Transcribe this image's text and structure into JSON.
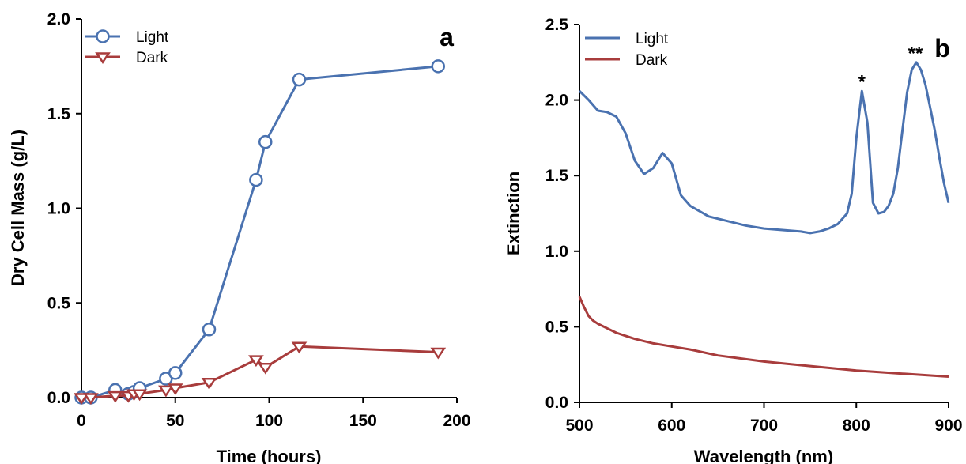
{
  "chart_data": [
    {
      "type": "line",
      "panel_label": "a",
      "xlabel": "Time (hours)",
      "ylabel": "Dry Cell Mass (g/L)",
      "xlim": [
        0,
        200
      ],
      "ylim": [
        0,
        2.0
      ],
      "xticks": [
        0,
        50,
        100,
        150,
        200
      ],
      "yticks": [
        0.0,
        0.5,
        1.0,
        1.5,
        2.0
      ],
      "xtick_labels": [
        "0",
        "50",
        "100",
        "150",
        "200"
      ],
      "ytick_labels": [
        "0.0",
        "0.5",
        "1.0",
        "1.5",
        "2.0"
      ],
      "grid": false,
      "legend_position": "top-left",
      "series": [
        {
          "name": "Light",
          "color": "#4a72b0",
          "marker": "circle",
          "x": [
            0,
            5,
            18,
            25,
            28,
            31,
            45,
            50,
            68,
            93,
            98,
            116,
            190
          ],
          "y": [
            0.0,
            0.0,
            0.04,
            0.02,
            0.03,
            0.05,
            0.1,
            0.13,
            0.36,
            1.15,
            1.35,
            1.68,
            1.75
          ]
        },
        {
          "name": "Dark",
          "color": "#a83c3c",
          "marker": "triangle-down",
          "x": [
            0,
            5,
            18,
            25,
            28,
            31,
            45,
            50,
            68,
            93,
            98,
            116,
            190
          ],
          "y": [
            0.0,
            0.0,
            0.01,
            0.01,
            0.02,
            0.02,
            0.04,
            0.05,
            0.08,
            0.2,
            0.16,
            0.27,
            0.24
          ]
        }
      ]
    },
    {
      "type": "line",
      "panel_label": "b",
      "xlabel": "Wavelength (nm)",
      "ylabel": "Extinction",
      "xlim": [
        500,
        900
      ],
      "ylim": [
        0,
        2.5
      ],
      "xticks": [
        500,
        600,
        700,
        800,
        900
      ],
      "yticks": [
        0.0,
        0.5,
        1.0,
        1.5,
        2.0,
        2.5
      ],
      "xtick_labels": [
        "500",
        "600",
        "700",
        "800",
        "900"
      ],
      "ytick_labels": [
        "0.0",
        "0.5",
        "1.0",
        "1.5",
        "2.0",
        "2.5"
      ],
      "grid": false,
      "legend_position": "top-left",
      "annotations": [
        {
          "text": "*",
          "x": 806,
          "y": 2.12
        },
        {
          "text": "**",
          "x": 864,
          "y": 2.31
        }
      ],
      "series": [
        {
          "name": "Light",
          "color": "#4a72b0",
          "x": [
            500,
            510,
            520,
            530,
            540,
            550,
            560,
            570,
            580,
            590,
            600,
            610,
            620,
            640,
            660,
            680,
            700,
            720,
            740,
            750,
            760,
            770,
            780,
            790,
            795,
            800,
            806,
            812,
            818,
            824,
            830,
            835,
            840,
            845,
            850,
            855,
            860,
            865,
            870,
            875,
            880,
            885,
            890,
            895,
            900
          ],
          "y": [
            2.06,
            2.0,
            1.93,
            1.92,
            1.89,
            1.78,
            1.6,
            1.51,
            1.55,
            1.65,
            1.58,
            1.37,
            1.3,
            1.23,
            1.2,
            1.17,
            1.15,
            1.14,
            1.13,
            1.12,
            1.13,
            1.15,
            1.18,
            1.25,
            1.38,
            1.75,
            2.06,
            1.85,
            1.32,
            1.25,
            1.26,
            1.3,
            1.38,
            1.55,
            1.8,
            2.05,
            2.2,
            2.25,
            2.2,
            2.1,
            1.95,
            1.8,
            1.62,
            1.45,
            1.32
          ]
        },
        {
          "name": "Dark",
          "color": "#a83c3c",
          "x": [
            500,
            505,
            510,
            515,
            520,
            530,
            540,
            550,
            560,
            580,
            600,
            620,
            650,
            700,
            750,
            800,
            850,
            900
          ],
          "y": [
            0.7,
            0.63,
            0.57,
            0.54,
            0.52,
            0.49,
            0.46,
            0.44,
            0.42,
            0.39,
            0.37,
            0.35,
            0.31,
            0.27,
            0.24,
            0.21,
            0.19,
            0.17
          ]
        }
      ]
    }
  ]
}
